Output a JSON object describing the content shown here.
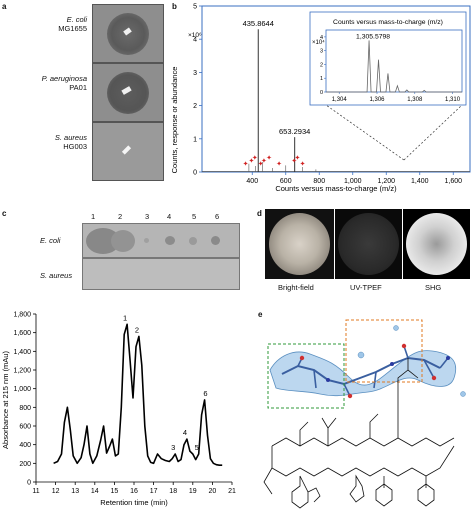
{
  "panel_letters": {
    "a": "a",
    "b": "b",
    "c": "c",
    "d": "d",
    "e": "e"
  },
  "panel_a": {
    "strains": [
      {
        "species": "E. coli",
        "strain": "MG1655"
      },
      {
        "species": "P. aeruginosa",
        "strain": "PA01"
      },
      {
        "species": "S. aureus",
        "strain": "HG003"
      }
    ]
  },
  "panel_b": {
    "exponent_label": "×10⁶",
    "yaxis_label": "Counts, response or abundance",
    "xaxis_label": "Counts versus mass-to-charge (m/z)",
    "peak_labels": [
      "435.8644",
      "653.2934"
    ],
    "inset_title": "Counts versus mass-to-charge (m/z)",
    "inset_exponent": "×10⁴",
    "inset_peak_label": "1,305.5798"
  },
  "panel_c": {
    "column_numbers": [
      "1",
      "2",
      "3",
      "4",
      "5",
      "6"
    ],
    "row_labels": [
      "E. coli",
      "S. aureus"
    ]
  },
  "panel_d": {
    "labels": [
      "Bright-field",
      "UV-TPEF",
      "SHG"
    ]
  },
  "hplc": {
    "yaxis_label": "Absorbance at 215 nm (mAu)",
    "xaxis_label": "Retention time (min)",
    "peak_labels": [
      "1",
      "2",
      "3",
      "4",
      "5",
      "6"
    ]
  },
  "chart_data": [
    {
      "type": "line",
      "title": "",
      "xlabel": "Counts versus mass-to-charge (m/z)",
      "ylabel": "Counts, response or abundance",
      "xlim": [
        100,
        1700
      ],
      "ylim": [
        0,
        5
      ],
      "xticks": [
        "400",
        "600",
        "800",
        "1,000",
        "1,200",
        "1,400",
        "1,600"
      ],
      "yticks": [
        "0",
        "1",
        "2",
        "3",
        "4",
        "5"
      ],
      "peaks": [
        {
          "x": 435.8644,
          "y": 4.3,
          "label": "435.8644"
        },
        {
          "x": 653.2934,
          "y": 1.05,
          "label": "653.2934"
        }
      ],
      "markers_x": [
        360,
        395,
        415,
        450,
        470,
        500,
        560,
        650,
        670,
        700
      ]
    },
    {
      "type": "line",
      "title": "Counts versus mass-to-charge (m/z)",
      "xlabel": "",
      "ylabel": "",
      "xlim": [
        1303.3,
        1310.5
      ],
      "ylim": [
        0,
        4.5
      ],
      "xticks": [
        "1,304",
        "1,306",
        "1,308",
        "1,310"
      ],
      "yticks": [
        "0",
        "1",
        "2",
        "3",
        "4"
      ],
      "peaks": [
        {
          "x": 1305.5798,
          "y": 3.75,
          "label": "1,305.5798"
        },
        {
          "x": 1306.08,
          "y": 2.35
        },
        {
          "x": 1306.58,
          "y": 1.35
        },
        {
          "x": 1307.08,
          "y": 0.45
        },
        {
          "x": 1307.58,
          "y": 0.15
        },
        {
          "x": 1308.5,
          "y": 0.12
        }
      ]
    },
    {
      "type": "line",
      "title": "",
      "xlabel": "Retention time (min)",
      "ylabel": "Absorbance at 215 nm (mAu)",
      "xlim": [
        11,
        21
      ],
      "ylim": [
        0,
        1800
      ],
      "xticks": [
        "11",
        "12",
        "13",
        "14",
        "15",
        "16",
        "17",
        "18",
        "19",
        "20",
        "21"
      ],
      "yticks": [
        "0",
        "200",
        "400",
        "600",
        "800",
        "1,000",
        "1,200",
        "1,400",
        "1,600",
        "1,800"
      ],
      "x": [
        11.9,
        12.1,
        12.3,
        12.45,
        12.6,
        12.75,
        12.9,
        13.1,
        13.3,
        13.45,
        13.6,
        13.75,
        13.9,
        14.1,
        14.3,
        14.45,
        14.6,
        14.75,
        14.9,
        15.05,
        15.2,
        15.35,
        15.5,
        15.65,
        15.8,
        15.95,
        16.1,
        16.25,
        16.4,
        16.55,
        16.7,
        16.85,
        17,
        17.2,
        17.4,
        17.6,
        17.8,
        17.95,
        18.1,
        18.25,
        18.4,
        18.55,
        18.7,
        18.85,
        19,
        19.15,
        19.3,
        19.45,
        19.6,
        19.75,
        19.9,
        20.05,
        20.2,
        20.35,
        20.5
      ],
      "y": [
        200,
        220,
        300,
        640,
        800,
        560,
        280,
        200,
        260,
        400,
        600,
        300,
        200,
        280,
        450,
        600,
        310,
        380,
        460,
        280,
        300,
        800,
        1580,
        1690,
        1300,
        900,
        1450,
        1560,
        1250,
        600,
        280,
        210,
        200,
        300,
        250,
        230,
        220,
        250,
        300,
        220,
        240,
        400,
        460,
        330,
        300,
        240,
        300,
        720,
        880,
        500,
        250,
        200,
        185,
        180,
        180
      ],
      "labels": [
        {
          "x": 15.65,
          "y": 1690,
          "text": "1"
        },
        {
          "x": 16.25,
          "y": 1560,
          "text": "2"
        },
        {
          "x": 18.1,
          "y": 300,
          "text": "3"
        },
        {
          "x": 18.7,
          "y": 460,
          "text": "4"
        },
        {
          "x": 19.3,
          "y": 300,
          "text": "5"
        },
        {
          "x": 19.75,
          "y": 880,
          "text": "6"
        }
      ]
    }
  ]
}
